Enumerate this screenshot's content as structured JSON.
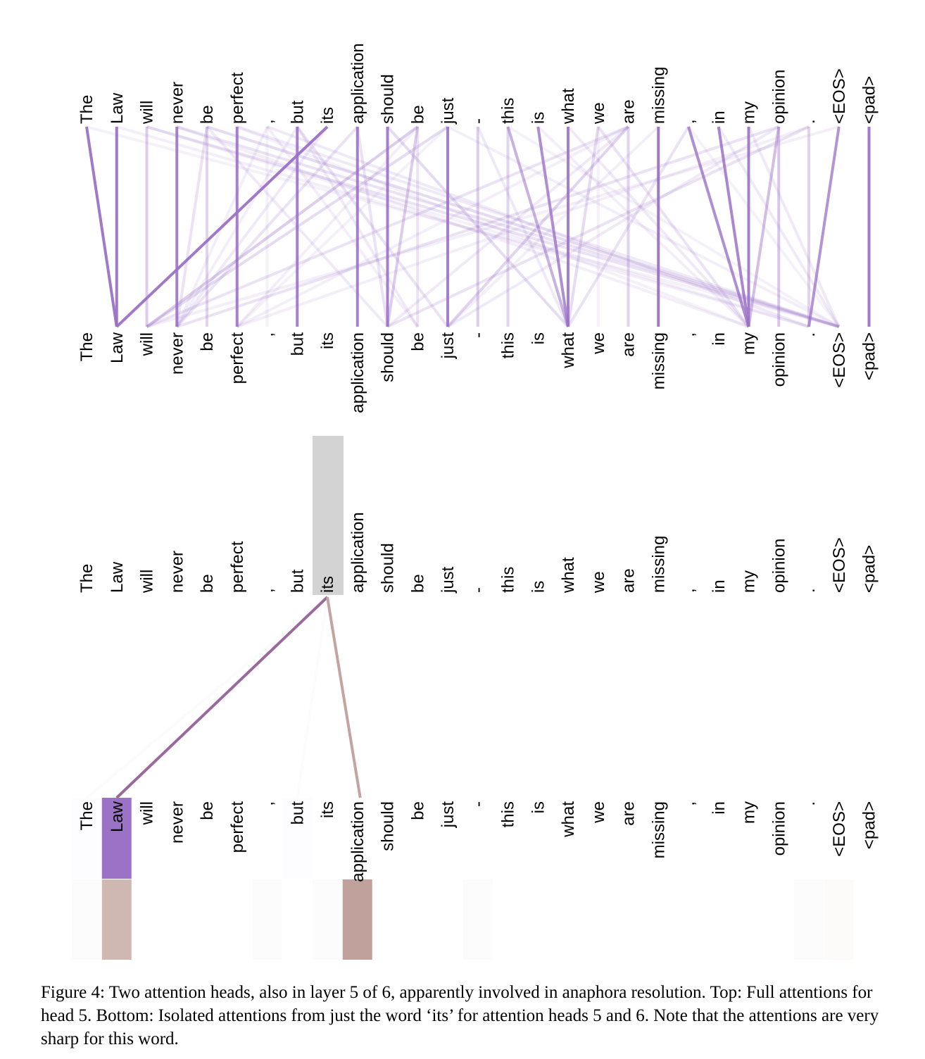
{
  "tokens": [
    "The",
    "Law",
    "will",
    "never",
    "be",
    "perfect",
    ",",
    "but",
    "its",
    "application",
    "should",
    "be",
    "just",
    "-",
    "this",
    "is",
    "what",
    "we",
    "are",
    "missing",
    ",",
    "in",
    "my",
    "opinion",
    ".",
    "<EOS>",
    "<pad>"
  ],
  "colors": {
    "head5": "#9b72c6",
    "head6": "#b58f88",
    "highlight": "#d3d3d3",
    "line5": "#9a6a9e",
    "line6": "#c4a4a2"
  },
  "top_attention": {
    "head": 5,
    "links": [
      [
        0,
        1,
        0.95
      ],
      [
        1,
        1,
        0.95
      ],
      [
        2,
        2,
        0.35
      ],
      [
        3,
        3,
        0.9
      ],
      [
        4,
        4,
        0.3
      ],
      [
        5,
        5,
        0.9
      ],
      [
        6,
        6,
        0.1
      ],
      [
        7,
        7,
        0.9
      ],
      [
        8,
        1,
        0.95
      ],
      [
        9,
        9,
        0.9
      ],
      [
        10,
        10,
        0.9
      ],
      [
        11,
        11,
        0.2
      ],
      [
        12,
        12,
        0.9
      ],
      [
        13,
        13,
        0.35
      ],
      [
        14,
        14,
        0.3
      ],
      [
        15,
        16,
        0.8
      ],
      [
        16,
        16,
        0.9
      ],
      [
        17,
        17,
        0.1
      ],
      [
        18,
        18,
        0.3
      ],
      [
        19,
        19,
        0.95
      ],
      [
        20,
        22,
        0.8
      ],
      [
        21,
        22,
        0.85
      ],
      [
        22,
        22,
        0.9
      ],
      [
        23,
        23,
        0.4
      ],
      [
        24,
        24,
        0.3
      ],
      [
        25,
        24,
        0.75
      ],
      [
        26,
        26,
        0.95
      ],
      [
        14,
        16,
        0.55
      ],
      [
        20,
        16,
        0.2
      ],
      [
        4,
        25,
        0.25
      ],
      [
        2,
        25,
        0.2
      ],
      [
        3,
        25,
        0.2
      ],
      [
        5,
        25,
        0.15
      ],
      [
        6,
        24,
        0.15
      ],
      [
        0,
        25,
        0.1
      ],
      [
        1,
        24,
        0.12
      ],
      [
        11,
        2,
        0.35
      ],
      [
        11,
        10,
        0.35
      ],
      [
        12,
        2,
        0.25
      ],
      [
        10,
        16,
        0.25
      ],
      [
        9,
        3,
        0.2
      ],
      [
        9,
        10,
        0.2
      ],
      [
        7,
        12,
        0.2
      ],
      [
        7,
        11,
        0.15
      ],
      [
        18,
        12,
        0.3
      ],
      [
        18,
        2,
        0.2
      ],
      [
        17,
        16,
        0.25
      ],
      [
        17,
        22,
        0.2
      ],
      [
        23,
        22,
        0.45
      ],
      [
        23,
        3,
        0.2
      ],
      [
        24,
        10,
        0.2
      ],
      [
        25,
        2,
        0.12
      ],
      [
        24,
        5,
        0.12
      ],
      [
        23,
        12,
        0.15
      ],
      [
        19,
        12,
        0.12
      ],
      [
        13,
        16,
        0.15
      ],
      [
        16,
        22,
        0.15
      ],
      [
        15,
        22,
        0.12
      ],
      [
        4,
        3,
        0.2
      ],
      [
        4,
        10,
        0.15
      ],
      [
        6,
        11,
        0.12
      ],
      [
        8,
        3,
        0.15
      ],
      [
        12,
        25,
        0.12
      ],
      [
        21,
        25,
        0.15
      ],
      [
        22,
        25,
        0.15
      ],
      [
        3,
        22,
        0.12
      ],
      [
        2,
        24,
        0.1
      ],
      [
        5,
        22,
        0.1
      ],
      [
        6,
        3,
        0.12
      ],
      [
        11,
        5,
        0.12
      ],
      [
        18,
        10,
        0.15
      ],
      [
        18,
        5,
        0.12
      ],
      [
        20,
        25,
        0.1
      ],
      [
        14,
        25,
        0.1
      ],
      [
        7,
        3,
        0.12
      ],
      [
        12,
        5,
        0.1
      ]
    ]
  },
  "isolated_attention": {
    "heads": [
      5,
      6
    ],
    "source_token": "its",
    "head5_weights": {
      "The": 0.02,
      "Law": 1.0,
      "but": 0.02
    },
    "head6_weights": {
      "Law": 0.48,
      "application": 0.62,
      "The": 0.02,
      ",": 0.02,
      "its": 0.02,
      "-": 0.02,
      ".": 0.02,
      "<EOS>": 0.03
    }
  },
  "caption": "Figure 4: Two attention heads, also in layer 5 of 6, apparently involved in anaphora resolution. Top: Full attentions for head 5. Bottom: Isolated attentions from just the word ‘its’ for attention heads 5 and 6. Note that the attentions are very sharp for this word."
}
